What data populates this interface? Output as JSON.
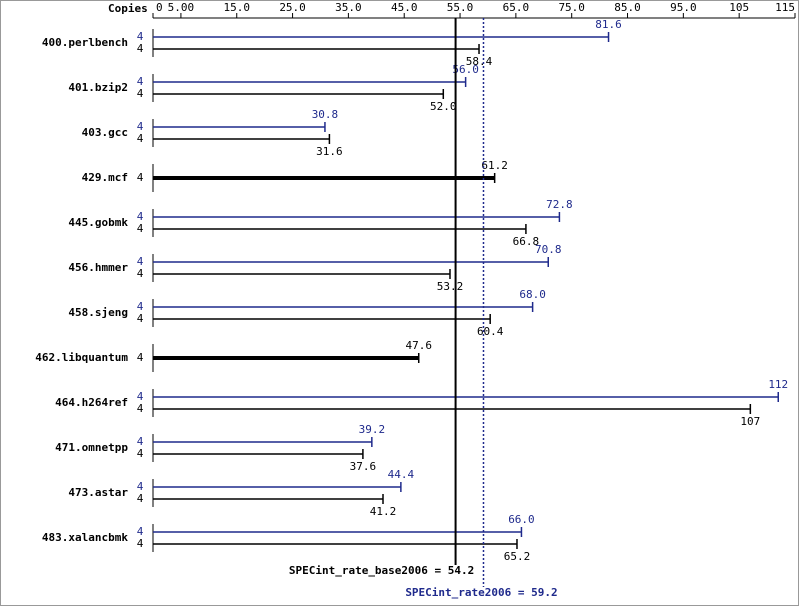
{
  "chart_data": {
    "type": "bar",
    "orientation": "horizontal",
    "copies_header": "Copies",
    "categories": [
      "400.perlbench",
      "401.bzip2",
      "403.gcc",
      "429.mcf",
      "445.gobmk",
      "456.hmmer",
      "458.sjeng",
      "462.libquantum",
      "464.h264ref",
      "471.omnetpp",
      "473.astar",
      "483.xalancbmk"
    ],
    "series": [
      {
        "color": "#1f2a8c",
        "copies": [
          4,
          4,
          4,
          null,
          4,
          4,
          4,
          null,
          4,
          4,
          4,
          4
        ],
        "values": [
          81.6,
          56.0,
          30.8,
          null,
          72.8,
          70.8,
          68.0,
          null,
          112,
          39.2,
          44.4,
          66.0
        ],
        "value_labels": [
          "81.6",
          "56.0",
          "30.8",
          null,
          "72.8",
          "70.8",
          "68.0",
          null,
          "112",
          "39.2",
          "44.4",
          "66.0"
        ]
      },
      {
        "color": "#000000",
        "copies": [
          4,
          4,
          4,
          4,
          4,
          4,
          4,
          4,
          4,
          4,
          4,
          4
        ],
        "values": [
          58.4,
          52.0,
          31.6,
          61.2,
          66.8,
          53.2,
          60.4,
          47.6,
          107,
          37.6,
          41.2,
          65.2
        ],
        "value_labels": [
          "58.4",
          "52.0",
          "31.6",
          "61.2",
          "66.8",
          "53.2",
          "60.4",
          "47.6",
          "107",
          "37.6",
          "41.2",
          "65.2"
        ]
      }
    ],
    "xlim": [
      0,
      115
    ],
    "xticks": [
      0,
      {
        "value": 5,
        "label": "5.00"
      },
      {
        "value": 15,
        "label": "15.0"
      },
      {
        "value": 25,
        "label": "25.0"
      },
      {
        "value": 35,
        "label": "35.0"
      },
      {
        "value": 45,
        "label": "45.0"
      },
      {
        "value": 55,
        "label": "55.0"
      },
      {
        "value": 65,
        "label": "65.0"
      },
      {
        "value": 75,
        "label": "75.0"
      },
      {
        "value": 85,
        "label": "85.0"
      },
      {
        "value": 95,
        "label": "95.0"
      },
      105,
      115
    ],
    "reference_lines": [
      {
        "label": "SPECint_rate_base2006 = 54.2",
        "value": 54.2,
        "color": "#000000",
        "style": "solid"
      },
      {
        "label": "SPECint_rate2006 = 59.2",
        "value": 59.2,
        "color": "#1f2a8c",
        "style": "dotted"
      }
    ]
  }
}
